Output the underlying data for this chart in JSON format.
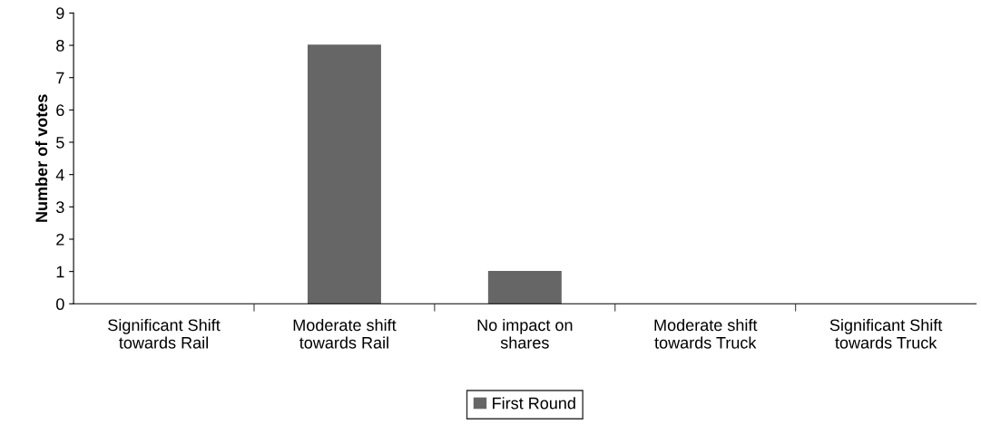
{
  "chart_data": {
    "type": "bar",
    "ylabel": "Number of votes",
    "categories": [
      "Significant Shift\ntowards Rail",
      "Moderate shift\ntowards Rail",
      "No impact on\nshares",
      "Moderate shift\ntowards Truck",
      "Significant Shift\ntowards Truck"
    ],
    "series": [
      {
        "name": "First Round",
        "color": "#666666",
        "values": [
          0,
          8,
          1,
          0,
          0
        ]
      }
    ],
    "ylim": [
      0,
      9
    ],
    "yticks": [
      0,
      1,
      2,
      3,
      4,
      5,
      6,
      7,
      8,
      9
    ],
    "grid": false,
    "legend": "bottom"
  }
}
